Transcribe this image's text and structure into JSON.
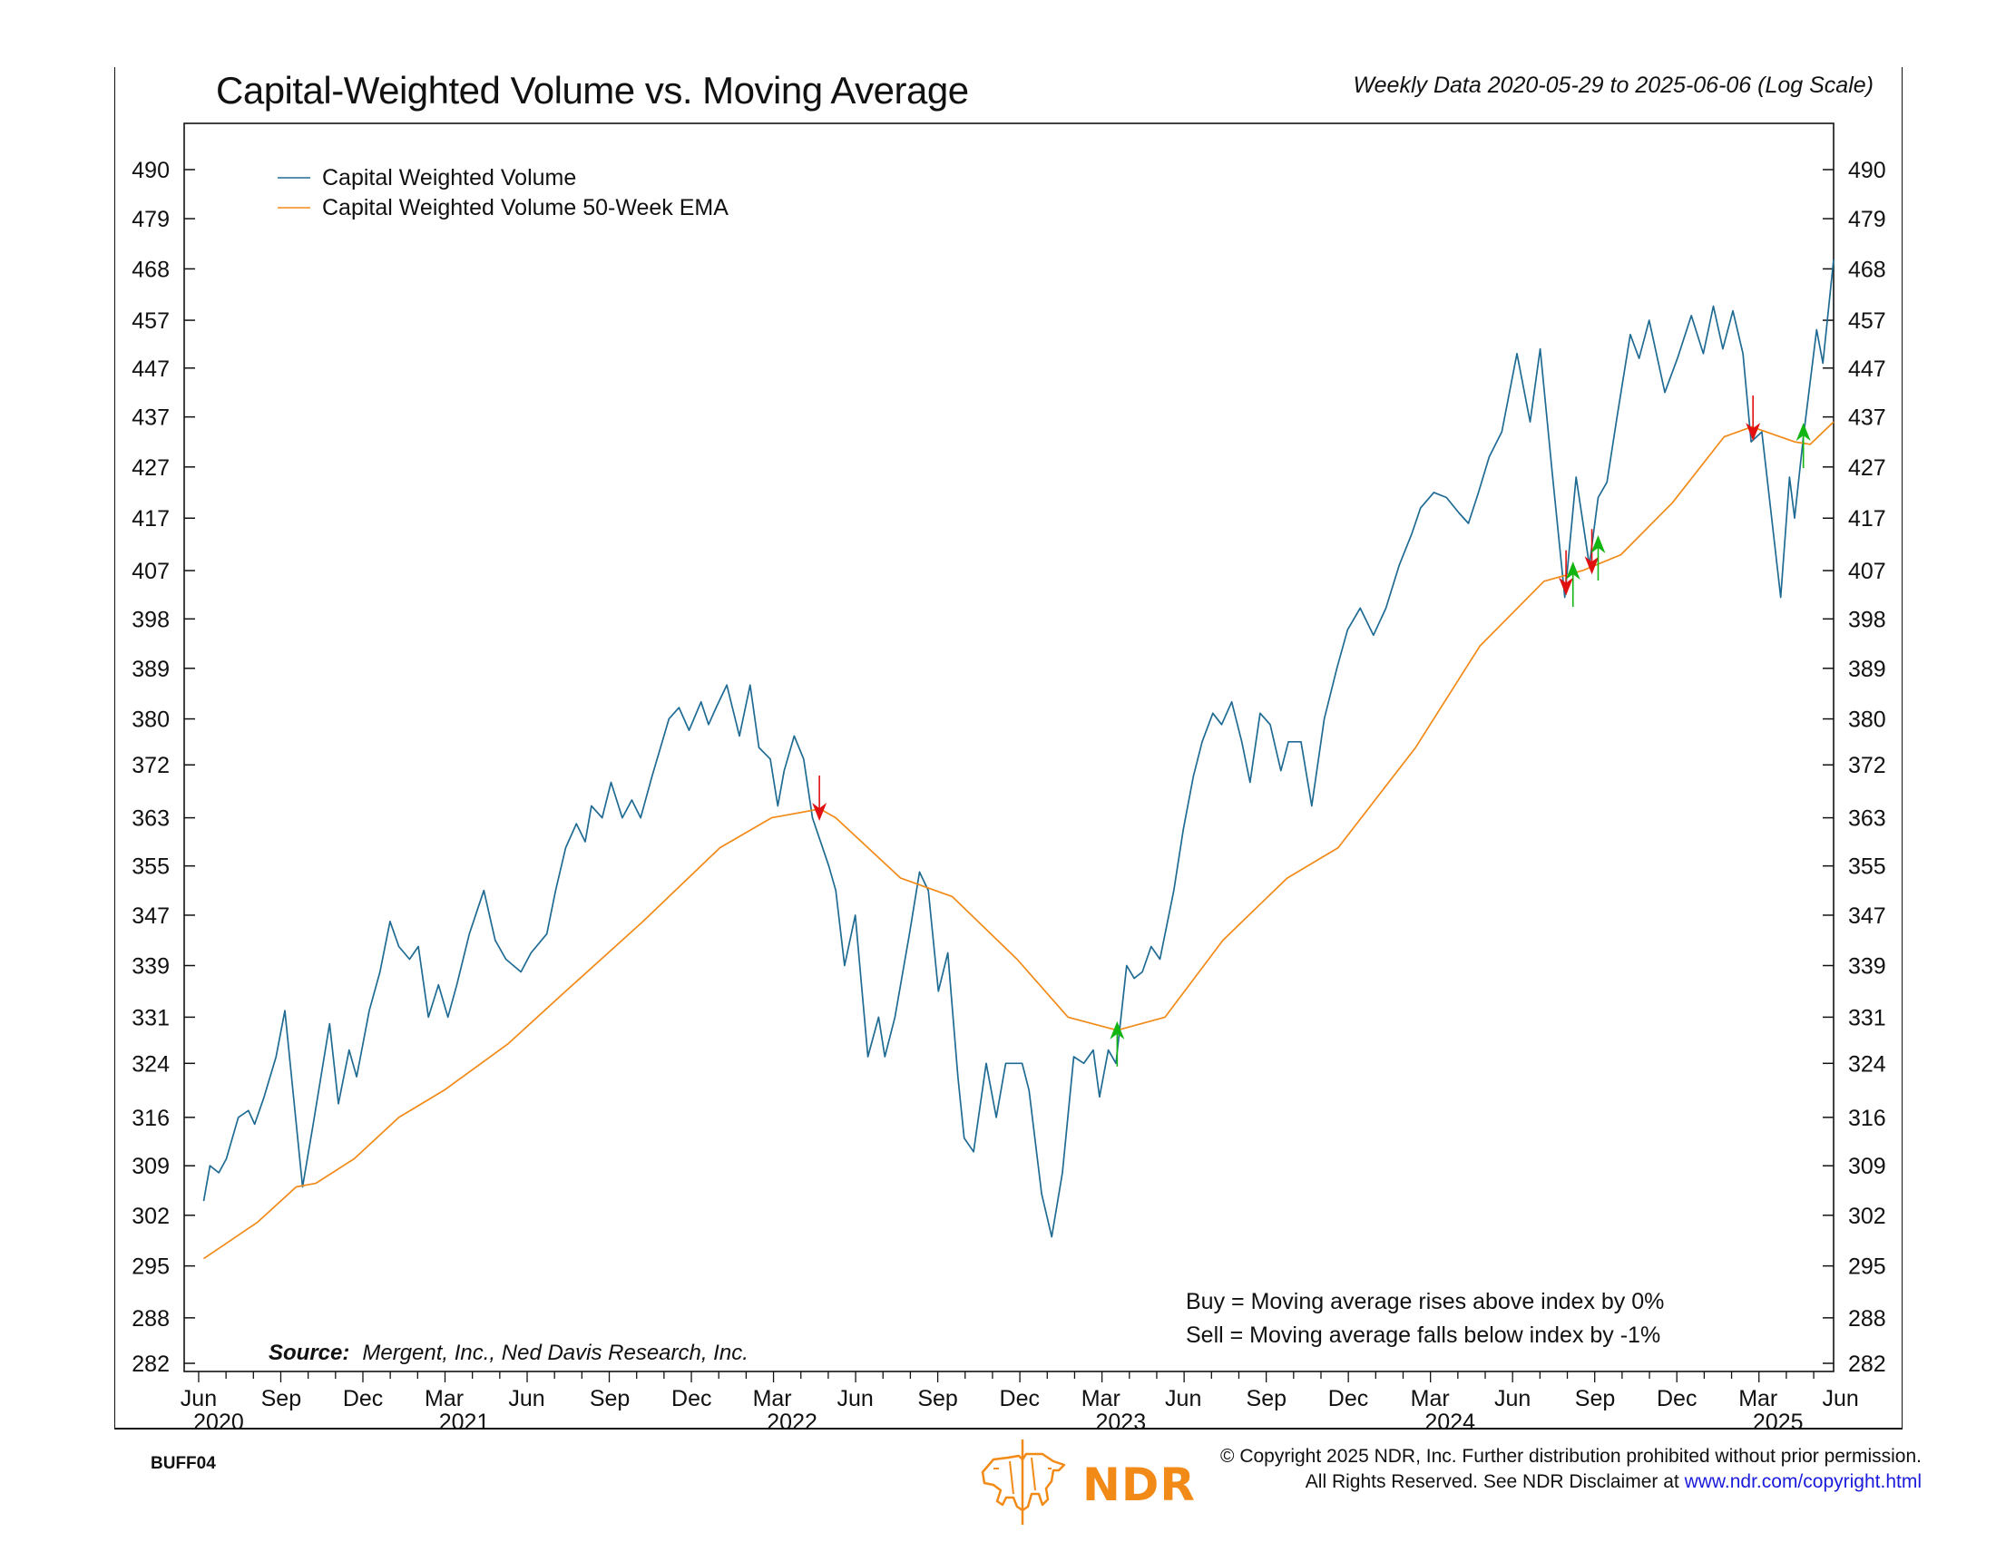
{
  "header": {
    "title": "Capital-Weighted Volume vs. Moving Average",
    "subtitle": "Weekly Data 2020-05-29 to 2025-06-06 (Log Scale)"
  },
  "source": {
    "label": "Source:",
    "text": "Mergent, Inc., Ned Davis Research, Inc."
  },
  "notes": {
    "buy": "Buy = Moving average rises above index by 0%",
    "sell": "Sell = Moving average falls below index by -1%"
  },
  "footer": {
    "chart_code": "BUFF04",
    "copyright_line1": "© Copyright 2025 NDR, Inc. Further distribution prohibited without prior permission.",
    "copyright_line2_prefix": "All Rights Reserved. See NDR Disclaimer at ",
    "copyright_link": "www.ndr.com/copyright.html",
    "logo_text": "NDR",
    "logo_icon": "bull-bear-icon"
  },
  "colors": {
    "volume": "#1f6b93",
    "ema": "#f28a18",
    "buy": "#13b513",
    "sell": "#e01010",
    "logo": "#f28a18",
    "link": "#1a1adb"
  },
  "chart_data": {
    "type": "line",
    "title": "Capital-Weighted Volume vs. Moving Average",
    "subtitle": "Weekly Data 2020-05-29 to 2025-06-06 (Log Scale)",
    "xlabel": "",
    "ylabel": "",
    "y_scale": "log",
    "ylim": [
      280,
      497
    ],
    "x_start": "2020-05-29",
    "x_end": "2025-06-06",
    "x_unit": "weeks since 2020-05-29",
    "x_range": [
      0,
      262
    ],
    "grid": false,
    "legend_position": "top-left",
    "y_ticks": [
      282,
      288,
      295,
      302,
      309,
      316,
      324,
      331,
      339,
      347,
      355,
      363,
      372,
      380,
      389,
      398,
      407,
      417,
      427,
      437,
      447,
      457,
      468,
      479,
      490
    ],
    "x_ticks": [
      {
        "month": "Jun",
        "year": "2020",
        "week": 2.3
      },
      {
        "month": "Sep",
        "year": "",
        "week": 15.4
      },
      {
        "month": "Dec",
        "year": "",
        "week": 28.4
      },
      {
        "month": "Mar",
        "year": "2021",
        "week": 41.3
      },
      {
        "month": "Jun",
        "year": "",
        "week": 54.4
      },
      {
        "month": "Sep",
        "year": "",
        "week": 67.6
      },
      {
        "month": "Dec",
        "year": "",
        "week": 80.6
      },
      {
        "month": "Mar",
        "year": "2022",
        "week": 93.4
      },
      {
        "month": "Jun",
        "year": "",
        "week": 106.6
      },
      {
        "month": "Sep",
        "year": "",
        "week": 119.7
      },
      {
        "month": "Dec",
        "year": "",
        "week": 132.7
      },
      {
        "month": "Mar",
        "year": "2023",
        "week": 145.6
      },
      {
        "month": "Jun",
        "year": "",
        "week": 158.7
      },
      {
        "month": "Sep",
        "year": "",
        "week": 171.9
      },
      {
        "month": "Dec",
        "year": "",
        "week": 184.9
      },
      {
        "month": "Mar",
        "year": "2024",
        "week": 197.9
      },
      {
        "month": "Jun",
        "year": "",
        "week": 211.0
      },
      {
        "month": "Sep",
        "year": "",
        "week": 224.1
      },
      {
        "month": "Dec",
        "year": "",
        "week": 237.1
      },
      {
        "month": "Mar",
        "year": "2025",
        "week": 250.0
      },
      {
        "month": "Jun",
        "year": "",
        "week": 263.1
      }
    ],
    "series": [
      {
        "name": "Capital Weighted Volume",
        "color": "#1f6b93",
        "points": [
          [
            3.1,
            304
          ],
          [
            4.1,
            309
          ],
          [
            5.5,
            308
          ],
          [
            6.7,
            310
          ],
          [
            8.6,
            316
          ],
          [
            10.2,
            317
          ],
          [
            11.2,
            315
          ],
          [
            12.7,
            319
          ],
          [
            14.6,
            325
          ],
          [
            16,
            332
          ],
          [
            18.8,
            306
          ],
          [
            20.5,
            315
          ],
          [
            23.1,
            330
          ],
          [
            24.5,
            318
          ],
          [
            26.2,
            326
          ],
          [
            27.4,
            322
          ],
          [
            29.4,
            332
          ],
          [
            31.1,
            338
          ],
          [
            32.7,
            346
          ],
          [
            34.1,
            342
          ],
          [
            35.8,
            340
          ],
          [
            37.2,
            342
          ],
          [
            38.8,
            331
          ],
          [
            40.4,
            336
          ],
          [
            41.9,
            331
          ],
          [
            43.3,
            336
          ],
          [
            45.3,
            344
          ],
          [
            47.6,
            351
          ],
          [
            49.4,
            343
          ],
          [
            51.1,
            340
          ],
          [
            53.5,
            338
          ],
          [
            55.1,
            341
          ],
          [
            57.6,
            344
          ],
          [
            59,
            351
          ],
          [
            60.6,
            358
          ],
          [
            62.3,
            362
          ],
          [
            63.7,
            359
          ],
          [
            64.7,
            365
          ],
          [
            66.4,
            363
          ],
          [
            67.8,
            369
          ],
          [
            69.6,
            363
          ],
          [
            71.1,
            366
          ],
          [
            72.5,
            363
          ],
          [
            74.3,
            370
          ],
          [
            77,
            380
          ],
          [
            78.6,
            382
          ],
          [
            80.2,
            378
          ],
          [
            82.1,
            383
          ],
          [
            83.3,
            379
          ],
          [
            84.5,
            382
          ],
          [
            86.2,
            386
          ],
          [
            88.2,
            377
          ],
          [
            89.9,
            386
          ],
          [
            91.3,
            375
          ],
          [
            93.1,
            373
          ],
          [
            94.3,
            365
          ],
          [
            95.3,
            371
          ],
          [
            96.9,
            377
          ],
          [
            98.4,
            373
          ],
          [
            99.8,
            363
          ],
          [
            102.4,
            355
          ],
          [
            103.5,
            351
          ],
          [
            104.9,
            339
          ],
          [
            106.6,
            347
          ],
          [
            108.6,
            325
          ],
          [
            110.3,
            331
          ],
          [
            111.3,
            325
          ],
          [
            112.9,
            331
          ],
          [
            115.2,
            344
          ],
          [
            116.8,
            354
          ],
          [
            118.2,
            351
          ],
          [
            119.8,
            335
          ],
          [
            121.3,
            341
          ],
          [
            122.9,
            322
          ],
          [
            123.9,
            313
          ],
          [
            125.4,
            311
          ],
          [
            127.4,
            324
          ],
          [
            129,
            316
          ],
          [
            130.5,
            324
          ],
          [
            133.1,
            324
          ],
          [
            134.2,
            320
          ],
          [
            136.2,
            305
          ],
          [
            137.8,
            299
          ],
          [
            139.5,
            308
          ],
          [
            141.3,
            325
          ],
          [
            142.9,
            324
          ],
          [
            144.4,
            326
          ],
          [
            145.4,
            319
          ],
          [
            146.8,
            326
          ],
          [
            148,
            324
          ],
          [
            149.7,
            339
          ],
          [
            150.9,
            337
          ],
          [
            152.2,
            338
          ],
          [
            153.6,
            342
          ],
          [
            155,
            340
          ],
          [
            157.2,
            351
          ],
          [
            158.7,
            361
          ],
          [
            160.3,
            370
          ],
          [
            161.7,
            376
          ],
          [
            163.4,
            381
          ],
          [
            164.8,
            379
          ],
          [
            166.4,
            383
          ],
          [
            168,
            376
          ],
          [
            169.3,
            369
          ],
          [
            170.9,
            381
          ],
          [
            172.5,
            379
          ],
          [
            174.2,
            371
          ],
          [
            175.4,
            376
          ],
          [
            177.4,
            376
          ],
          [
            179.1,
            365
          ],
          [
            181.1,
            380
          ],
          [
            183.1,
            389
          ],
          [
            184.8,
            396
          ],
          [
            186.8,
            400
          ],
          [
            188.9,
            395
          ],
          [
            190.9,
            400
          ],
          [
            193,
            408
          ],
          [
            195,
            414
          ],
          [
            196.4,
            419
          ],
          [
            198.5,
            422
          ],
          [
            200.5,
            421
          ],
          [
            202.5,
            418
          ],
          [
            204,
            416
          ],
          [
            205.6,
            422
          ],
          [
            207.3,
            429
          ],
          [
            209.3,
            434
          ],
          [
            211.7,
            450
          ],
          [
            213.8,
            436
          ],
          [
            215.4,
            451
          ],
          [
            217.3,
            426
          ],
          [
            219.3,
            402
          ],
          [
            221.1,
            425
          ],
          [
            223.2,
            408
          ],
          [
            224.6,
            421
          ],
          [
            226,
            424
          ],
          [
            227.6,
            437
          ],
          [
            229.7,
            454
          ],
          [
            231.1,
            449
          ],
          [
            232.7,
            457
          ],
          [
            235.2,
            442
          ],
          [
            237.2,
            449
          ],
          [
            239.4,
            458
          ],
          [
            241.3,
            450
          ],
          [
            242.9,
            460
          ],
          [
            244.4,
            451
          ],
          [
            246,
            459
          ],
          [
            247.6,
            450
          ],
          [
            248.9,
            432
          ],
          [
            250.6,
            434
          ],
          [
            253.6,
            402
          ],
          [
            255,
            425
          ],
          [
            255.8,
            417
          ],
          [
            257.2,
            433
          ],
          [
            259.3,
            455
          ],
          [
            260.3,
            448
          ],
          [
            262,
            470
          ]
        ]
      },
      {
        "name": "Capital Weighted Volume 50-Week EMA",
        "color": "#f28a18",
        "points": [
          [
            3.1,
            296
          ],
          [
            11.6,
            301
          ],
          [
            17.8,
            306
          ],
          [
            20.9,
            306.5
          ],
          [
            27,
            310
          ],
          [
            34.1,
            316
          ],
          [
            41.3,
            320
          ],
          [
            51.5,
            327
          ],
          [
            60.6,
            335
          ],
          [
            72.9,
            346
          ],
          [
            85.1,
            358
          ],
          [
            93.3,
            363
          ],
          [
            101,
            364.5
          ],
          [
            103.5,
            363
          ],
          [
            113.8,
            353
          ],
          [
            122,
            350
          ],
          [
            132.3,
            340
          ],
          [
            140.4,
            331
          ],
          [
            148.2,
            329
          ],
          [
            155.8,
            331
          ],
          [
            165,
            343
          ],
          [
            175.2,
            353
          ],
          [
            183.3,
            358
          ],
          [
            195.6,
            375
          ],
          [
            205.8,
            393
          ],
          [
            216,
            405
          ],
          [
            222.1,
            407
          ],
          [
            228.2,
            410
          ],
          [
            236.4,
            420
          ],
          [
            244.6,
            433
          ],
          [
            249,
            435
          ],
          [
            255.8,
            432
          ],
          [
            258.3,
            431.5
          ],
          [
            262,
            436
          ]
        ]
      }
    ],
    "signals": [
      {
        "type": "sell",
        "week": 100.9,
        "value": 364
      },
      {
        "type": "buy",
        "week": 148.2,
        "value": 329
      },
      {
        "type": "sell",
        "week": 219.5,
        "value": 404
      },
      {
        "type": "buy",
        "week": 220.6,
        "value": 407
      },
      {
        "type": "sell",
        "week": 223.6,
        "value": 408
      },
      {
        "type": "buy",
        "week": 224.6,
        "value": 412
      },
      {
        "type": "sell",
        "week": 249.2,
        "value": 434
      },
      {
        "type": "buy",
        "week": 257.2,
        "value": 434
      }
    ]
  }
}
